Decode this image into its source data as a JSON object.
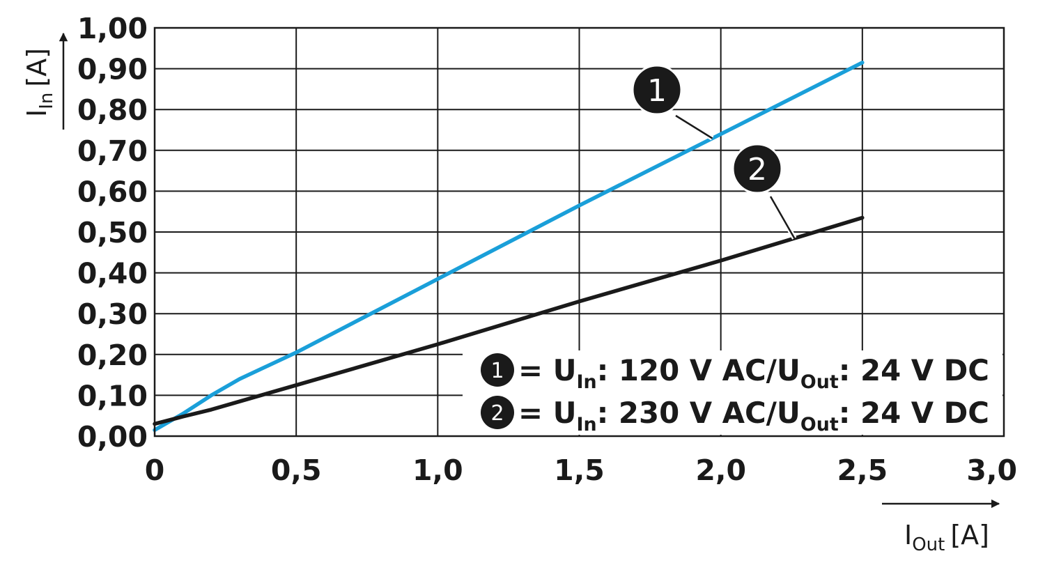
{
  "chart_data": {
    "type": "line",
    "x_axis": {
      "label_main": "I",
      "label_sub": "Out",
      "label_unit": "[A]",
      "ticks": [
        "0",
        "0,5",
        "1,0",
        "1,5",
        "2,0",
        "2,5",
        "3,0"
      ],
      "tick_values": [
        0,
        0.5,
        1.0,
        1.5,
        2.0,
        2.5,
        3.0
      ],
      "range": [
        0,
        3.0
      ]
    },
    "y_axis": {
      "label_main": "I",
      "label_sub": "In",
      "label_unit": "[A]",
      "ticks": [
        "0,00",
        "0,10",
        "0,20",
        "0,30",
        "0,40",
        "0,50",
        "0,60",
        "0,70",
        "0,80",
        "0,90",
        "1,00"
      ],
      "tick_values": [
        0,
        0.1,
        0.2,
        0.3,
        0.4,
        0.5,
        0.6,
        0.7,
        0.8,
        0.9,
        1.0
      ],
      "range": [
        0,
        1.0
      ]
    },
    "grid": true,
    "series": [
      {
        "marker": "1",
        "color": "#1a9fd9",
        "x": [
          0,
          0.1,
          0.2,
          0.3,
          0.5,
          1.0,
          1.5,
          2.0,
          2.5
        ],
        "y": [
          0.015,
          0.055,
          0.1,
          0.14,
          0.205,
          0.385,
          0.565,
          0.74,
          0.915
        ]
      },
      {
        "marker": "2",
        "color": "#1a1a1a",
        "x": [
          0,
          0.1,
          0.2,
          0.3,
          0.5,
          1.0,
          1.5,
          2.0,
          2.5
        ],
        "y": [
          0.03,
          0.048,
          0.065,
          0.085,
          0.125,
          0.225,
          0.33,
          0.43,
          0.535
        ]
      }
    ],
    "legend": [
      {
        "marker": "1",
        "prefix": " = U",
        "sub1": "In",
        "middle": ": 120 V AC/U",
        "sub2": "Out",
        "suffix": ": 24 V DC"
      },
      {
        "marker": "2",
        "prefix": " = U",
        "sub1": "In",
        "middle": ": 230 V AC/U",
        "sub2": "Out",
        "suffix": ": 24 V DC"
      }
    ],
    "legend_placement": "bottom-right"
  }
}
